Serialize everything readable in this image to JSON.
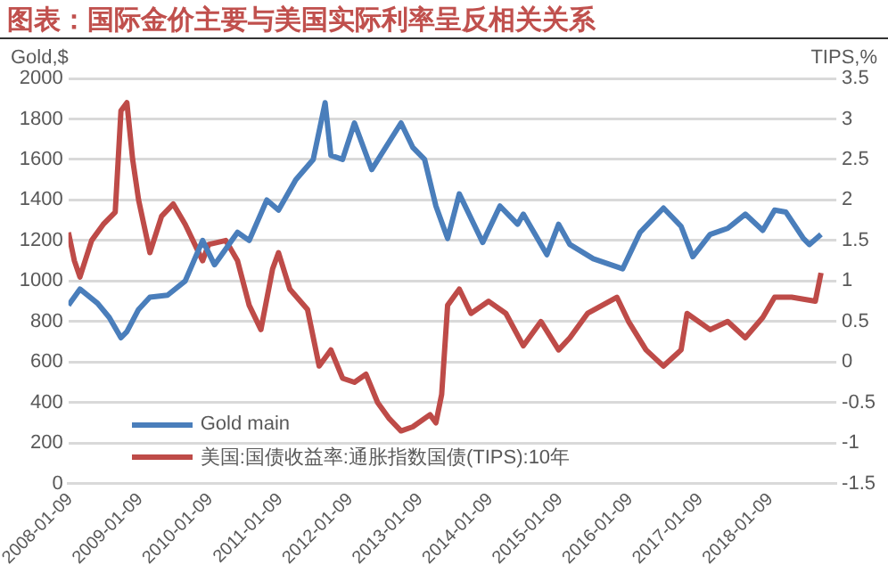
{
  "chart_data": {
    "type": "line",
    "title": "图表：国际金价主要与美国实际利率呈反相关关系",
    "ylabel": "Gold,$",
    "y2label": "TIPS,%",
    "xlim": [
      "2008-01-01",
      "2018-12-20"
    ],
    "xticks": [
      "2008-01-09",
      "2009-01-09",
      "2010-01-09",
      "2011-01-09",
      "2012-01-09",
      "2013-01-09",
      "2014-01-09",
      "2015-01-09",
      "2016-01-09",
      "2017-01-09",
      "2018-01-09"
    ],
    "ylim": [
      0,
      2000
    ],
    "yticks": [
      0,
      200,
      400,
      600,
      800,
      1000,
      1200,
      1400,
      1600,
      1800,
      2000
    ],
    "y2lim": [
      -1.5,
      3.5
    ],
    "y2ticks": [
      -1.5,
      -1,
      -0.5,
      0,
      0.5,
      1,
      1.5,
      2,
      2.5,
      3,
      3.5
    ],
    "grid": "y",
    "legend": "bottom left",
    "marker": "none",
    "line_style": "solid",
    "series": [
      {
        "name": "Gold main",
        "color": "#4a7ebb",
        "x": [
          "2008-01",
          "2008-03",
          "2008-06",
          "2008-08",
          "2008-10",
          "2008-11",
          "2009-01",
          "2009-03",
          "2009-06",
          "2009-09",
          "2009-12",
          "2010-02",
          "2010-06",
          "2010-08",
          "2010-11",
          "2011-01",
          "2011-04",
          "2011-07",
          "2011-09",
          "2011-10",
          "2011-12",
          "2012-02",
          "2012-05",
          "2012-10",
          "2012-12",
          "2013-02",
          "2013-04",
          "2013-06",
          "2013-08",
          "2013-12",
          "2014-03",
          "2014-06",
          "2014-07",
          "2014-11",
          "2015-01",
          "2015-03",
          "2015-07",
          "2015-12",
          "2016-03",
          "2016-07",
          "2016-10",
          "2016-12",
          "2017-03",
          "2017-06",
          "2017-09",
          "2017-12",
          "2018-02",
          "2018-04",
          "2018-07",
          "2018-08",
          "2018-10"
        ],
        "values": [
          880,
          960,
          890,
          820,
          720,
          750,
          860,
          920,
          930,
          1000,
          1200,
          1080,
          1240,
          1200,
          1400,
          1350,
          1500,
          1600,
          1880,
          1620,
          1600,
          1780,
          1550,
          1780,
          1660,
          1600,
          1370,
          1210,
          1430,
          1190,
          1370,
          1280,
          1330,
          1130,
          1280,
          1180,
          1110,
          1060,
          1240,
          1360,
          1270,
          1120,
          1230,
          1260,
          1330,
          1250,
          1350,
          1340,
          1210,
          1180,
          1230
        ]
      },
      {
        "name": "美国:国债收益率:通胀指数国债(TIPS):10年",
        "color": "#be4b48",
        "axis": "y2",
        "x": [
          "2008-01",
          "2008-02",
          "2008-03",
          "2008-05",
          "2008-07",
          "2008-09",
          "2008-10",
          "2008-11",
          "2008-12",
          "2009-01",
          "2009-03",
          "2009-05",
          "2009-07",
          "2009-09",
          "2009-12",
          "2010-01",
          "2010-04",
          "2010-06",
          "2010-08",
          "2010-10",
          "2010-12",
          "2011-01",
          "2011-03",
          "2011-06",
          "2011-08",
          "2011-10",
          "2011-12",
          "2012-02",
          "2012-04",
          "2012-06",
          "2012-08",
          "2012-10",
          "2012-12",
          "2013-03",
          "2013-04",
          "2013-05",
          "2013-06",
          "2013-08",
          "2013-10",
          "2014-01",
          "2014-04",
          "2014-07",
          "2014-10",
          "2015-01",
          "2015-03",
          "2015-06",
          "2015-11",
          "2016-01",
          "2016-04",
          "2016-07",
          "2016-10",
          "2016-11",
          "2017-03",
          "2017-06",
          "2017-09",
          "2017-12",
          "2018-02",
          "2018-05",
          "2018-09",
          "2018-10"
        ],
        "values": [
          1.6,
          1.25,
          1.05,
          1.5,
          1.7,
          1.85,
          3.1,
          3.2,
          2.5,
          2.0,
          1.35,
          1.8,
          1.95,
          1.7,
          1.25,
          1.45,
          1.5,
          1.25,
          0.7,
          0.4,
          1.15,
          1.35,
          0.9,
          0.65,
          -0.05,
          0.15,
          -0.2,
          -0.25,
          -0.15,
          -0.5,
          -0.7,
          -0.85,
          -0.8,
          -0.65,
          -0.75,
          -0.4,
          0.7,
          0.9,
          0.6,
          0.75,
          0.6,
          0.2,
          0.5,
          0.15,
          0.3,
          0.6,
          0.8,
          0.5,
          0.15,
          -0.05,
          0.15,
          0.6,
          0.4,
          0.5,
          0.3,
          0.55,
          0.8,
          0.8,
          0.75,
          1.1
        ]
      }
    ]
  }
}
